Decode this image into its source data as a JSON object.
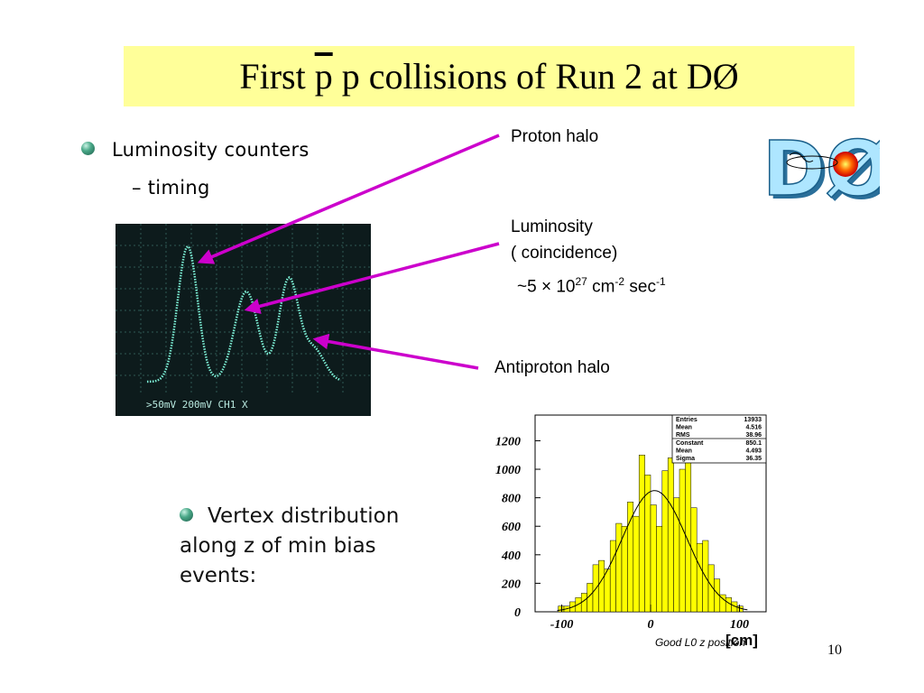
{
  "slide": {
    "title_part1": "First ",
    "title_pbar": "p",
    "title_part2": " p collisions of Run 2 at DØ",
    "bullet1": "Luminosity counters",
    "sub_bullet1": "–  timing",
    "callout_proton": "Proton halo",
    "callout_lumi_line1": "Luminosity",
    "callout_lumi_line2": "( coincidence)",
    "callout_lumi_prefix": "~5 × 10",
    "callout_lumi_exp1": "27",
    "callout_lumi_unit1": " cm",
    "callout_lumi_exp2": "-2",
    "callout_lumi_unit2": " sec",
    "callout_lumi_exp3": "-1",
    "callout_antiproton": "Antiproton halo",
    "vertex_text": "Vertex distribution along z of min bias events:",
    "page_number": "10"
  },
  "logo": {
    "text": "DØ"
  },
  "oscilloscope": {
    "readout": ">50mV  200mV        CH1  X"
  },
  "colors": {
    "title_bg": "#ffff99",
    "arrow": "#cc00cc",
    "trace": "#7cf0d6",
    "hist_fill": "#ffff00"
  },
  "chart_data": {
    "type": "bar",
    "xlabel": "Good L0 z position",
    "unit_label": "[cm]",
    "xlim": [
      -130,
      130
    ],
    "ylim": [
      0,
      1380
    ],
    "yticks": [
      "0",
      "200",
      "400",
      "600",
      "800",
      "1000",
      "1200"
    ],
    "xticks": [
      "-100",
      "0",
      "100"
    ],
    "bin_width": 6.5,
    "bin_starts": [
      -104,
      -97.5,
      -91,
      -84.5,
      -78,
      -71.5,
      -65,
      -58.5,
      -52,
      -45.5,
      -39,
      -32.5,
      -26,
      -19.5,
      -13,
      -6.5,
      0,
      6.5,
      13,
      19.5,
      26,
      32.5,
      39,
      45.5,
      52,
      58.5,
      65,
      71.5,
      78,
      84.5,
      91,
      97.5
    ],
    "values": [
      40,
      40,
      70,
      100,
      130,
      200,
      330,
      360,
      300,
      500,
      620,
      600,
      770,
      670,
      1100,
      960,
      750,
      600,
      990,
      1080,
      800,
      1000,
      1060,
      730,
      480,
      500,
      330,
      230,
      120,
      100,
      70,
      40
    ],
    "fit": {
      "constant": 850.1,
      "mean": 4.493,
      "sigma": 36.35
    },
    "stats": [
      {
        "label": "Entries",
        "value": "13933"
      },
      {
        "label": "Mean",
        "value": "4.516"
      },
      {
        "label": "RMS",
        "value": "38.96"
      },
      {
        "label": "Constant",
        "value": "850.1"
      },
      {
        "label": "Mean",
        "value": "4.493"
      },
      {
        "label": "Sigma",
        "value": "36.35"
      }
    ]
  }
}
